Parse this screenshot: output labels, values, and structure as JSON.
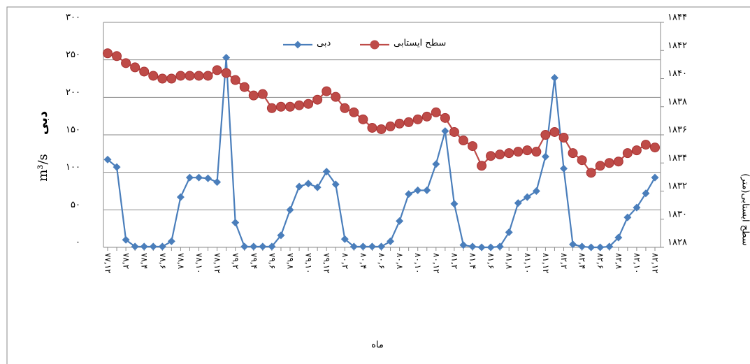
{
  "chart_data": {
    "type": "line",
    "x_label": "ماه",
    "y_label": "دبی",
    "y_unit": "m³/s",
    "y2_label": "سطح ایستابی(متر)",
    "categories": [
      "۷۷,۱۲",
      null,
      "۷۸,۲",
      null,
      "۷۸,۴",
      null,
      "۷۸,۶",
      null,
      "۷۸,۸",
      null,
      "۷۸,۱۰",
      null,
      "۷۸,۱۲",
      null,
      "۷۹,۲",
      null,
      "۷۹,۴",
      null,
      "۷۹,۶",
      null,
      "۷۹,۸",
      null,
      "۷۹,۱۰",
      null,
      "۷۹,۱۲",
      null,
      "۸۰,۲",
      null,
      "۸۰,۴",
      null,
      "۸۰,۶",
      null,
      "۸۰,۸",
      null,
      "۸۰,۱۰",
      null,
      "۸۰,۱۲",
      null,
      "۸۱,۲",
      null,
      "۸۱,۴",
      null,
      "۸۱,۶",
      null,
      "۸۱,۸",
      null,
      "۸۱,۱۰",
      null,
      "۸۱,۱۲",
      null,
      "۸۲,۲",
      null,
      "۸۲,۴",
      null,
      "۸۲,۶",
      null,
      "۸۲,۸",
      null,
      "۸۲,۱۰",
      null,
      "۸۲,۱۲"
    ],
    "series": [
      {
        "name": "دبی",
        "color": "#4a7ebb",
        "marker": "diamond",
        "axis": "y",
        "values": [
          117,
          107,
          10,
          1,
          1,
          1,
          1,
          8,
          67,
          93,
          93,
          92,
          87,
          253,
          33,
          1,
          1,
          1,
          1,
          16,
          50,
          81,
          85,
          80,
          101,
          84,
          11,
          1,
          1,
          1,
          1,
          8,
          35,
          71,
          76,
          76,
          111,
          155,
          58,
          3,
          1,
          0,
          0,
          1,
          20,
          59,
          67,
          75,
          121,
          226,
          105,
          4,
          1,
          0,
          0,
          1,
          13,
          40,
          53,
          72,
          93
        ]
      },
      {
        "name": "سطح ایستابی",
        "color": "#be4b48",
        "marker": "circle",
        "axis": "y2",
        "values": [
          1841.8,
          1841.6,
          1841.1,
          1840.8,
          1840.5,
          1840.2,
          1840.0,
          1840.0,
          1840.2,
          1840.2,
          1840.2,
          1840.2,
          1840.6,
          1840.4,
          1839.9,
          1839.4,
          1838.8,
          1838.9,
          1837.9,
          1838.0,
          1838.0,
          1838.1,
          1838.2,
          1838.5,
          1839.1,
          1838.7,
          1837.9,
          1837.6,
          1837.1,
          1836.5,
          1836.4,
          1836.6,
          1836.8,
          1836.9,
          1837.1,
          1837.3,
          1837.6,
          1837.2,
          1836.2,
          1835.6,
          1835.2,
          1833.8,
          1834.5,
          1834.6,
          1834.7,
          1834.8,
          1834.9,
          1834.8,
          1836.0,
          1836.2,
          1835.8,
          1834.7,
          1834.2,
          1833.3,
          1833.8,
          1834.0,
          1834.1,
          1834.7,
          1834.9,
          1835.3,
          1835.1
        ]
      }
    ],
    "ylim": [
      0,
      300
    ],
    "yticks": [
      {
        "value": 0,
        "label": "۰"
      },
      {
        "value": 50,
        "label": "۵۰"
      },
      {
        "value": 100,
        "label": "۱۰۰"
      },
      {
        "value": 150,
        "label": "۱۵۰"
      },
      {
        "value": 200,
        "label": "۲۰۰"
      },
      {
        "value": 250,
        "label": "۲۵۰"
      },
      {
        "value": 300,
        "label": "۳۰۰"
      }
    ],
    "y2lim": [
      1828,
      1844
    ],
    "y2ticks": [
      {
        "value": 1828,
        "label": "۱۸۲۸"
      },
      {
        "value": 1830,
        "label": "۱۸۳۰"
      },
      {
        "value": 1832,
        "label": "۱۸۳۲"
      },
      {
        "value": 1834,
        "label": "۱۸۳۴"
      },
      {
        "value": 1836,
        "label": "۱۸۳۶"
      },
      {
        "value": 1838,
        "label": "۱۸۳۸"
      },
      {
        "value": 1840,
        "label": "۱۸۴۰"
      },
      {
        "value": 1842,
        "label": "۱۸۴۲"
      },
      {
        "value": 1844,
        "label": "۱۸۴۴"
      }
    ],
    "grid": true
  }
}
